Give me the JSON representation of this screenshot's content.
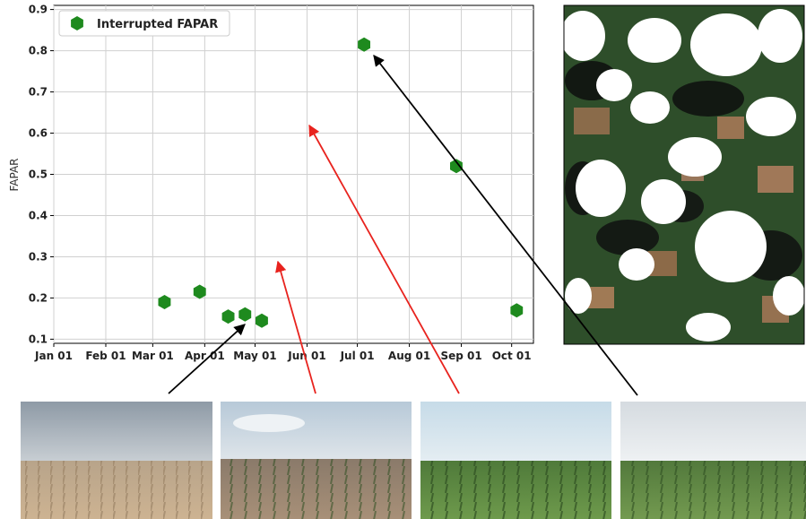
{
  "chart_data": {
    "type": "scatter",
    "ylabel": "FAPAR",
    "xlabel": "",
    "x_axis": "date",
    "ylim": [
      0.09,
      0.91
    ],
    "xlim": [
      "2019-01-01",
      "2019-10-14"
    ],
    "x_ticks": [
      {
        "date": "2019-01-01",
        "label": "Jan 01"
      },
      {
        "date": "2019-02-01",
        "label": "Feb 01"
      },
      {
        "date": "2019-03-01",
        "label": "Mar 01"
      },
      {
        "date": "2019-04-01",
        "label": "Apr 01"
      },
      {
        "date": "2019-05-01",
        "label": "May 01"
      },
      {
        "date": "2019-06-01",
        "label": "Jun 01"
      },
      {
        "date": "2019-07-01",
        "label": "Jul 01"
      },
      {
        "date": "2019-08-01",
        "label": "Aug 01"
      },
      {
        "date": "2019-09-01",
        "label": "Sep 01"
      },
      {
        "date": "2019-10-01",
        "label": "Oct 01"
      }
    ],
    "y_ticks": [
      0.1,
      0.2,
      0.3,
      0.4,
      0.5,
      0.6,
      0.7,
      0.8,
      0.9
    ],
    "grid": true,
    "legend_position": "top-left",
    "series": [
      {
        "name": "Interrupted FAPAR",
        "marker": "hexagon",
        "color": "#1e8a1e",
        "points": [
          {
            "x": "2019-03-08",
            "y": 0.19
          },
          {
            "x": "2019-03-29",
            "y": 0.215
          },
          {
            "x": "2019-04-15",
            "y": 0.155
          },
          {
            "x": "2019-04-25",
            "y": 0.16
          },
          {
            "x": "2019-05-05",
            "y": 0.145
          },
          {
            "x": "2019-07-05",
            "y": 0.815
          },
          {
            "x": "2019-08-29",
            "y": 0.52
          },
          {
            "x": "2019-10-04",
            "y": 0.17
          }
        ]
      }
    ]
  },
  "colors": {
    "marker": "#1e8a1e",
    "arrow_black": "#000000",
    "arrow_red": "#e8231e"
  }
}
